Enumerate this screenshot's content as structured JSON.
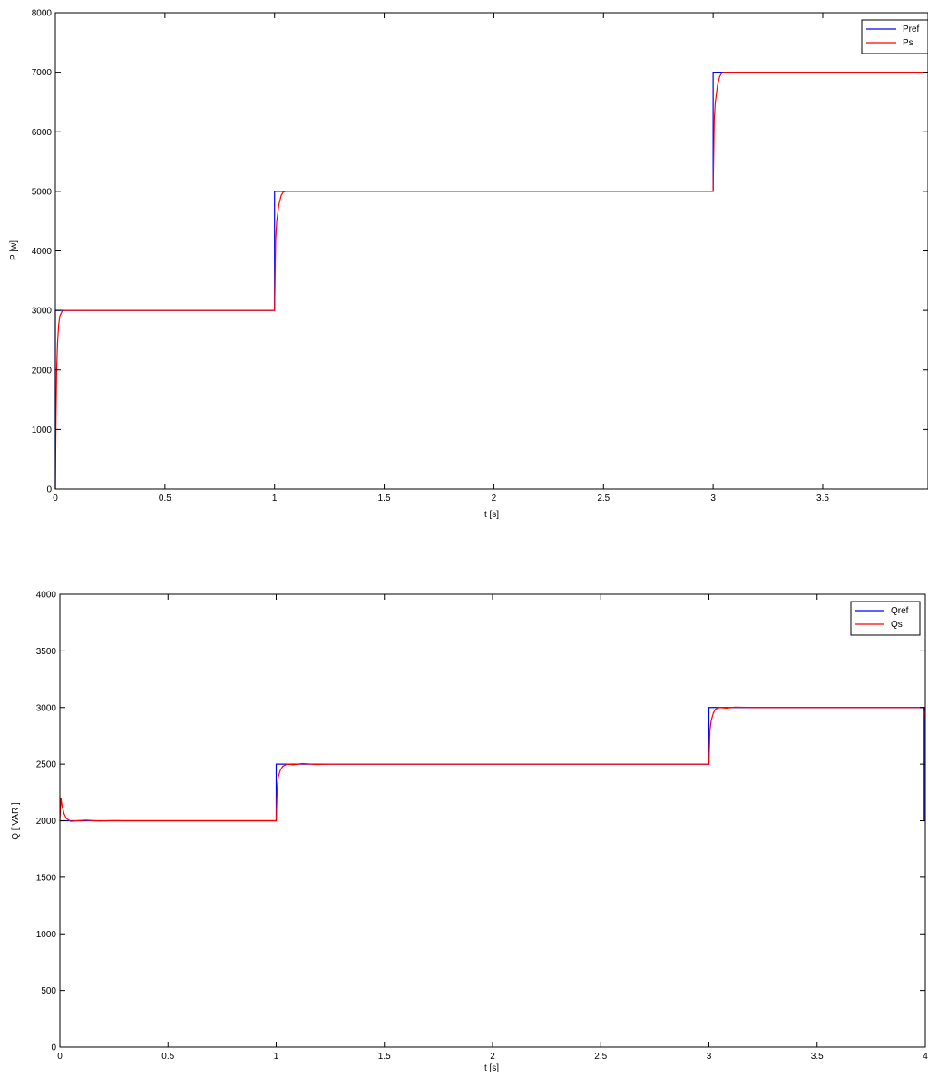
{
  "colors": {
    "reference": "#0000ff",
    "measured": "#ff0000",
    "axes": "#000000",
    "background": "#ffffff"
  },
  "chart_data": [
    {
      "type": "line",
      "title": "",
      "xlabel": "t [s]",
      "ylabel": "P [w]",
      "xlim": [
        0,
        3.98
      ],
      "ylim": [
        0,
        8000
      ],
      "grid": false,
      "legend_position": "top-right",
      "xticks": [
        0,
        0.5,
        1,
        1.5,
        2,
        2.5,
        3,
        3.5
      ],
      "xtick_labels": [
        "0",
        "0.5",
        "1",
        "1.5",
        "2",
        "2.5",
        "3",
        "3.5"
      ],
      "yticks": [
        0,
        1000,
        2000,
        3000,
        4000,
        5000,
        6000,
        7000,
        8000
      ],
      "ytick_labels": [
        "0",
        "1000",
        "2000",
        "3000",
        "4000",
        "5000",
        "6000",
        "7000",
        "8000"
      ],
      "series": [
        {
          "name": "Pref",
          "color": "#0000ff",
          "x": [
            0,
            0,
            1,
            1,
            3,
            3,
            3.98
          ],
          "y": [
            0,
            3000,
            3000,
            5000,
            5000,
            7000,
            7000
          ]
        },
        {
          "name": "Ps",
          "color": "#ff0000",
          "x": [
            0,
            0.003,
            0.006,
            0.01,
            0.015,
            0.02,
            0.03,
            0.04,
            0.06,
            1.0,
            1.005,
            1.01,
            1.02,
            1.03,
            1.04,
            1.05,
            1.07,
            3.0,
            3.005,
            3.01,
            3.02,
            3.03,
            3.04,
            3.05,
            3.07,
            3.98
          ],
          "y": [
            0,
            1200,
            2000,
            2450,
            2750,
            2900,
            2980,
            3000,
            3000,
            3000,
            4200,
            4500,
            4780,
            4930,
            4990,
            5000,
            5000,
            5000,
            6200,
            6500,
            6780,
            6930,
            6990,
            7000,
            7000,
            7000
          ]
        }
      ]
    },
    {
      "type": "line",
      "title": "",
      "xlabel": "t [s]",
      "ylabel": "Q [ VAR ]",
      "xlim": [
        0,
        4
      ],
      "ylim": [
        0,
        4000
      ],
      "grid": false,
      "legend_position": "top-right",
      "xticks": [
        0,
        0.5,
        1,
        1.5,
        2,
        2.5,
        3,
        3.5,
        4
      ],
      "xtick_labels": [
        "0",
        "0.5",
        "1",
        "1.5",
        "2",
        "2.5",
        "3",
        "3.5",
        "4"
      ],
      "yticks": [
        0,
        500,
        1000,
        1500,
        2000,
        2500,
        3000,
        3500,
        4000
      ],
      "ytick_labels": [
        "0",
        "500",
        "1000",
        "1500",
        "2000",
        "2500",
        "3000",
        "3500",
        "4000"
      ],
      "series": [
        {
          "name": "Qref",
          "color": "#0000ff",
          "x": [
            0,
            1,
            1,
            3,
            3,
            3.995,
            3.995,
            4
          ],
          "y": [
            2000,
            2000,
            2500,
            2500,
            3000,
            3000,
            2000,
            2000
          ]
        },
        {
          "name": "Qs",
          "color": "#ff0000",
          "x": [
            0,
            0.005,
            0.01,
            0.02,
            0.03,
            0.05,
            0.08,
            0.12,
            0.18,
            0.25,
            0.3,
            1.0,
            1.005,
            1.01,
            1.02,
            1.03,
            1.05,
            1.08,
            1.12,
            1.18,
            1.25,
            3.0,
            3.005,
            3.01,
            3.02,
            3.03,
            3.05,
            3.08,
            3.12,
            3.2,
            3.99,
            4.0
          ],
          "y": [
            2000,
            2200,
            2130,
            2060,
            2020,
            1995,
            2000,
            2005,
            1998,
            2001,
            2000,
            2000,
            2300,
            2390,
            2450,
            2480,
            2500,
            2495,
            2505,
            2498,
            2500,
            2500,
            2800,
            2880,
            2950,
            2985,
            3000,
            2995,
            3003,
            3000,
            3000,
            2920
          ]
        }
      ]
    }
  ]
}
